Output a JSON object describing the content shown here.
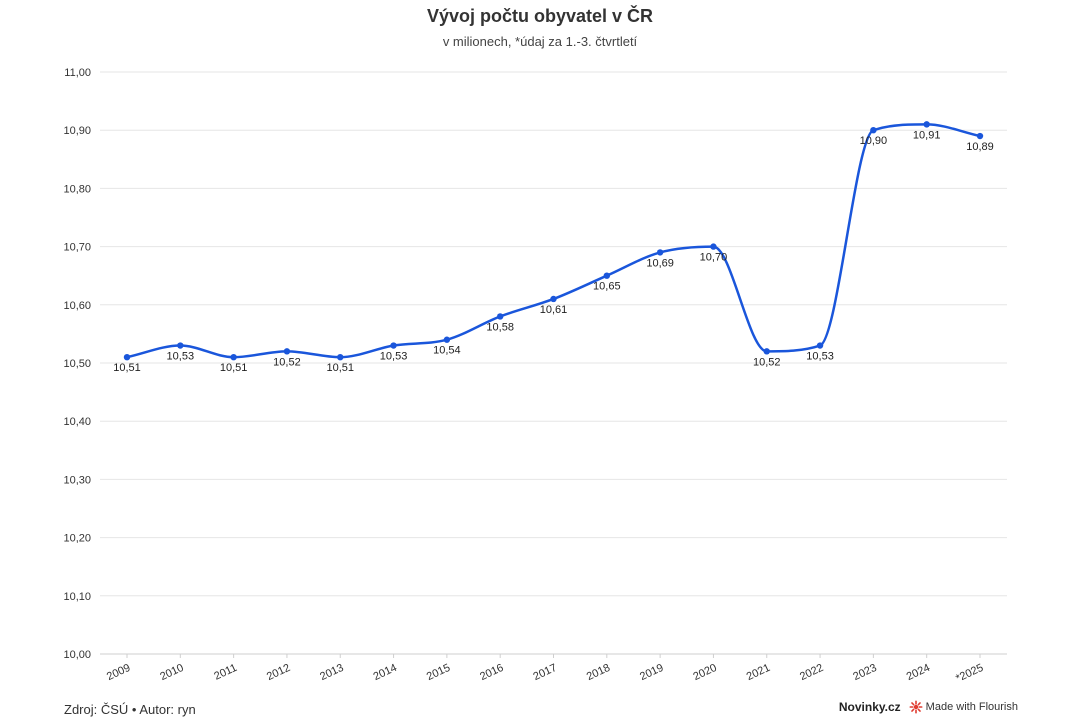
{
  "chart_data": {
    "type": "line",
    "title": "Vývoj počtu obyvatel v ČR",
    "subtitle": "v milionech, *údaj za 1.-3. čtvrtletí",
    "categories": [
      "2009",
      "2010",
      "2011",
      "2012",
      "2013",
      "2014",
      "2015",
      "2016",
      "2017",
      "2018",
      "2019",
      "2020",
      "2021",
      "2022",
      "2023",
      "2024",
      "*2025"
    ],
    "values": [
      10.51,
      10.53,
      10.51,
      10.52,
      10.51,
      10.53,
      10.54,
      10.58,
      10.61,
      10.65,
      10.69,
      10.7,
      10.52,
      10.53,
      10.9,
      10.91,
      10.89
    ],
    "data_labels": [
      "10,51",
      "10,53",
      "10,51",
      "10,52",
      "10,51",
      "10,53",
      "10,54",
      "10,58",
      "10,61",
      "10,65",
      "10,69",
      "10,70",
      "10,52",
      "10,53",
      "10,90",
      "10,91",
      "10,89"
    ],
    "ylim": [
      10.0,
      11.0
    ],
    "yticks": [
      10.0,
      10.1,
      10.2,
      10.3,
      10.4,
      10.5,
      10.6,
      10.7,
      10.8,
      10.9,
      11.0
    ],
    "ytick_labels": [
      "10,00",
      "10,10",
      "10,20",
      "10,30",
      "10,40",
      "10,50",
      "10,60",
      "10,70",
      "10,80",
      "10,90",
      "11,00"
    ],
    "grid": true,
    "line_color": "#1a56db"
  },
  "footer": {
    "source": "Zdroj: ČSÚ • Autor: ryn",
    "brand": "Novinky.cz",
    "made_with": "Made with Flourish"
  }
}
